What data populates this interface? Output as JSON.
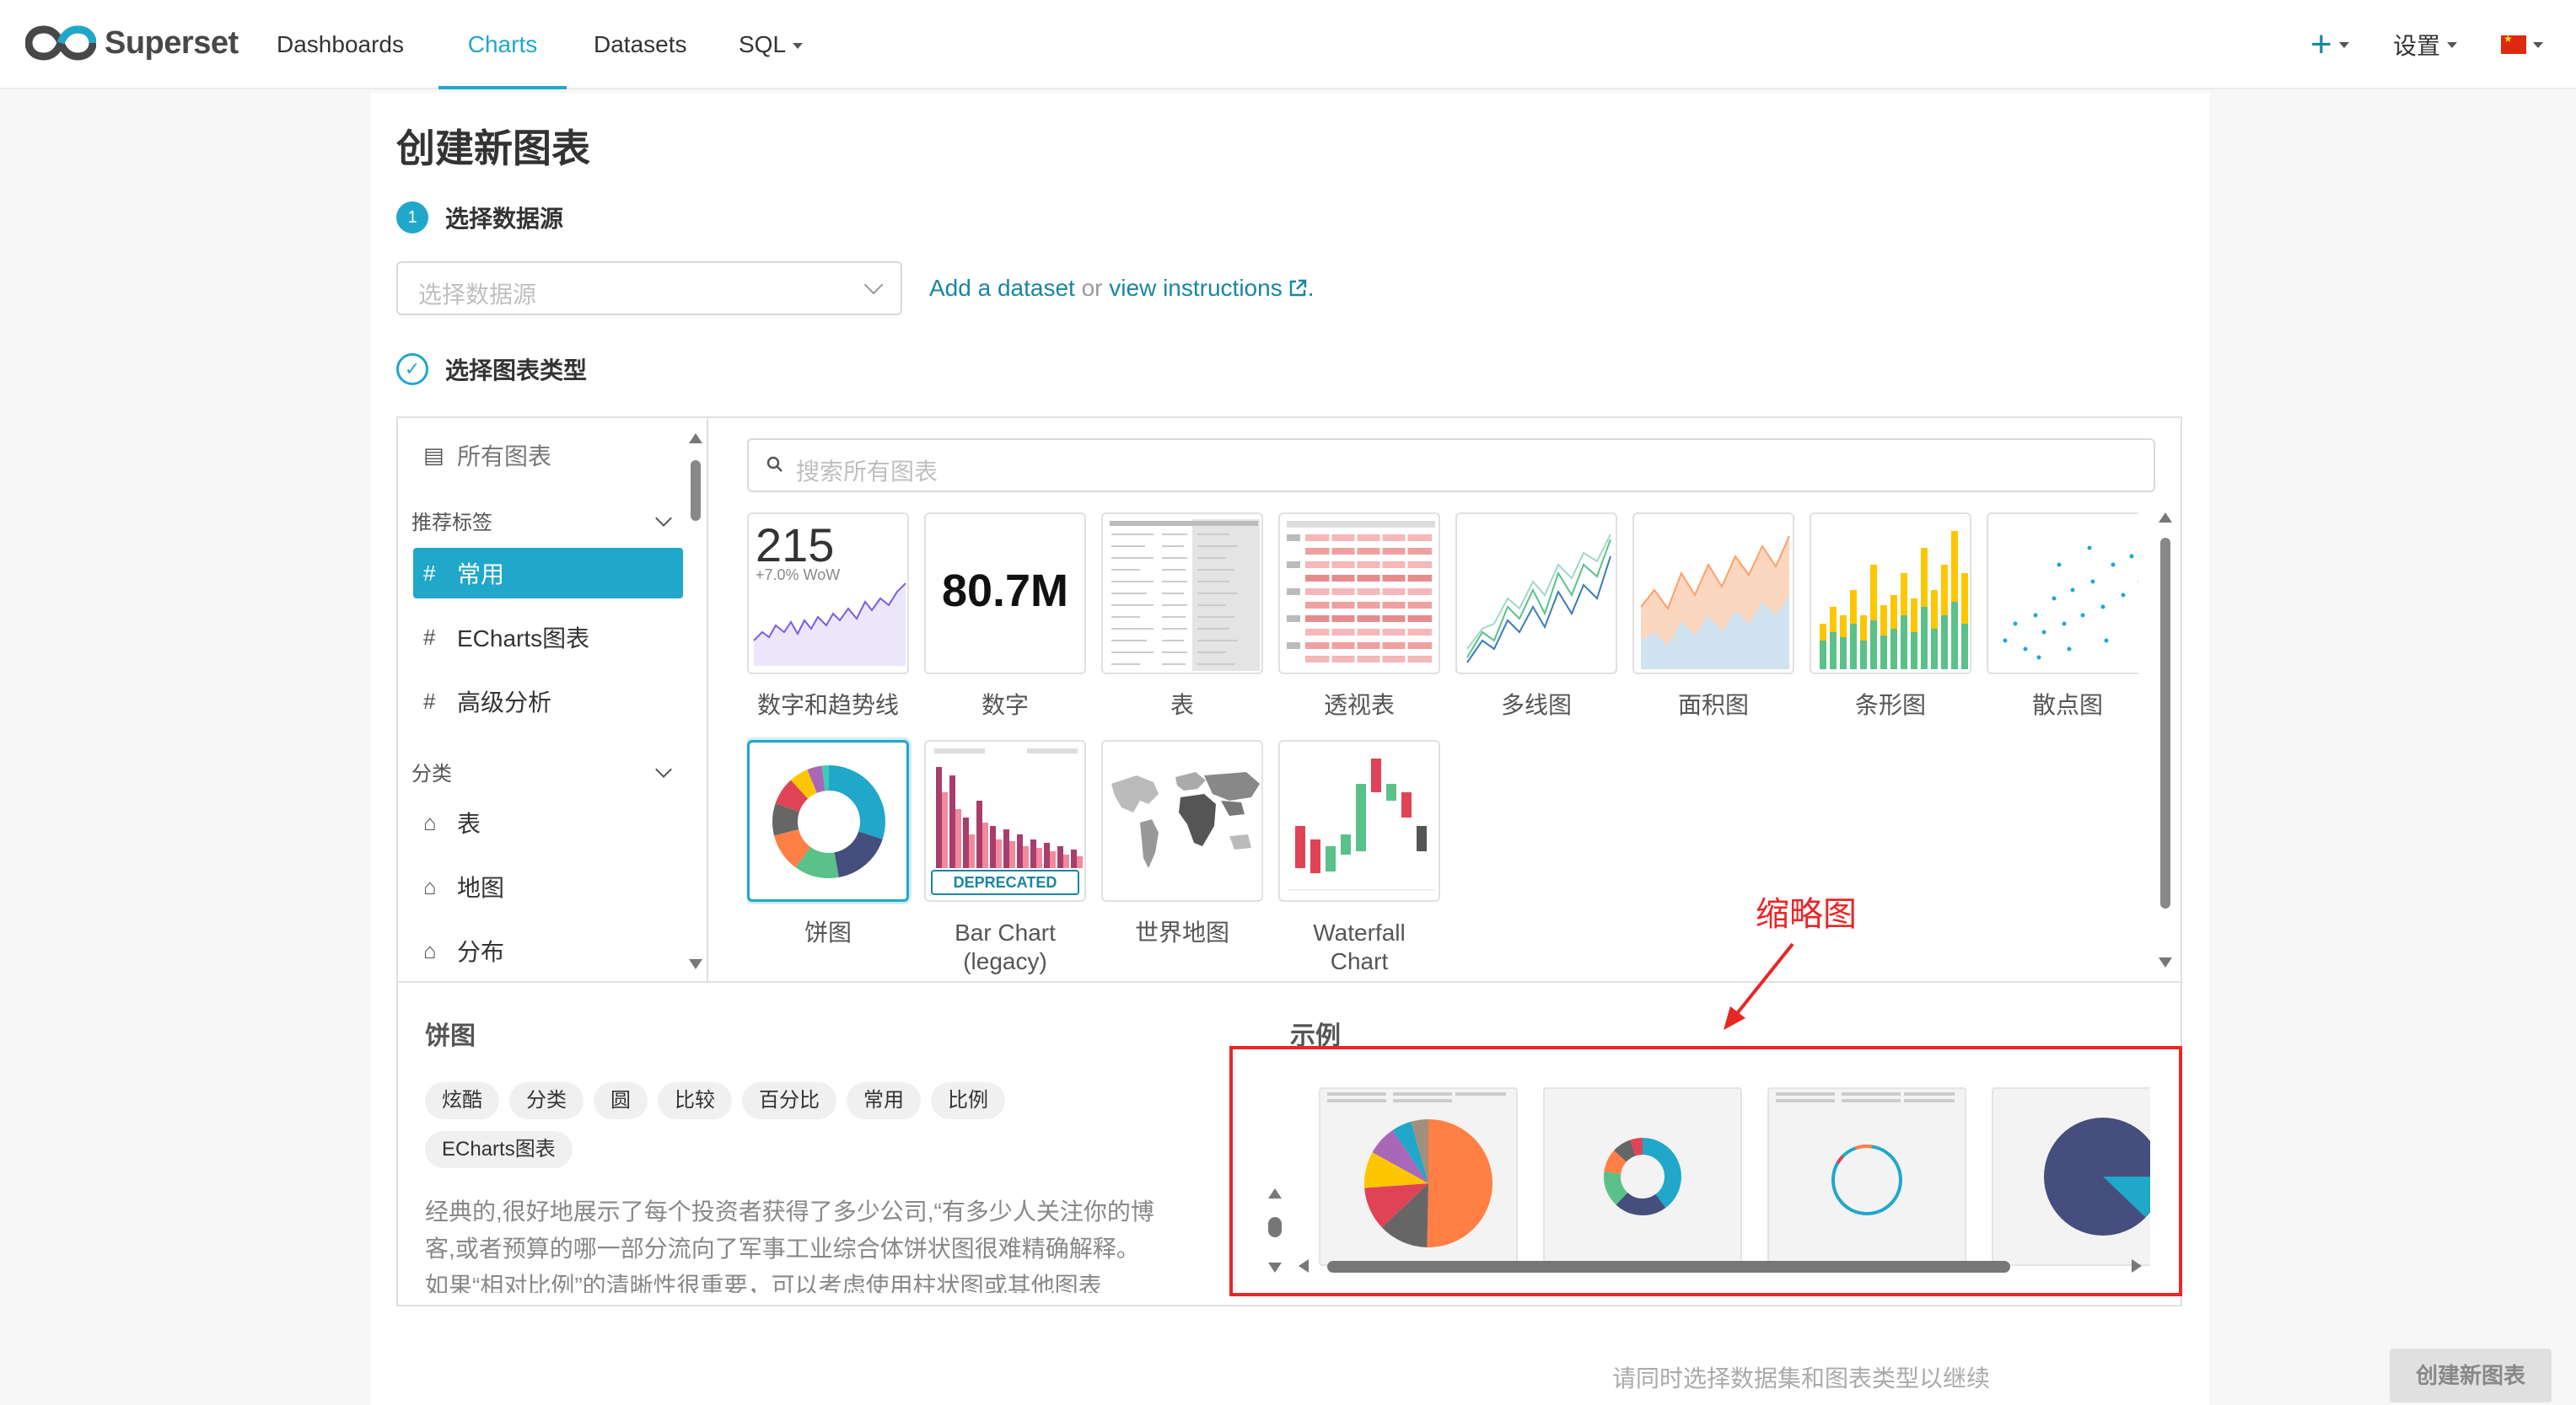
{
  "navbar": {
    "brand": "Superset",
    "items": [
      "Dashboards",
      "Charts",
      "Datasets",
      "SQL"
    ],
    "active": "Charts",
    "settings_label": "设置",
    "plus_label": "+"
  },
  "page": {
    "title": "创建新图表",
    "step1": {
      "number": "1",
      "label": "选择数据源"
    },
    "dataset_placeholder": "选择数据源",
    "add_dataset_link": "Add a dataset",
    "or_text": "or",
    "view_instructions_link": "view instructions",
    "link_suffix": ".",
    "step2": {
      "label": "选择图表类型"
    },
    "footer_hint": "请同时选择数据集和图表类型以继续",
    "create_button": "创建新图表"
  },
  "sidebar": {
    "all_charts": "所有图表",
    "recommended_section": "推荐标签",
    "recommended": [
      "常用",
      "ECharts图表",
      "高级分析"
    ],
    "active": "常用",
    "category_section": "分类",
    "categories": [
      "表",
      "地图",
      "分布"
    ]
  },
  "search": {
    "placeholder": "搜索所有图表"
  },
  "charts": [
    {
      "name": "数字和趋势线",
      "big_number": "215",
      "sub": "+7.0% WoW"
    },
    {
      "name": "数字",
      "big_number": "80.7M"
    },
    {
      "name": "表"
    },
    {
      "name": "透视表"
    },
    {
      "name": "多线图"
    },
    {
      "name": "面积图"
    },
    {
      "name": "条形图"
    },
    {
      "name": "散点图"
    },
    {
      "name": "饼图",
      "selected": true
    },
    {
      "name": "Bar Chart",
      "name2": "(legacy)",
      "badge": "DEPRECATED"
    },
    {
      "name": "世界地图"
    },
    {
      "name": "Waterfall",
      "name2": "Chart"
    }
  ],
  "detail": {
    "title": "饼图",
    "examples_title": "示例",
    "tags": [
      "炫酷",
      "分类",
      "圆",
      "比较",
      "百分比",
      "常用",
      "比例",
      "ECharts图表"
    ],
    "description": "经典的,很好地展示了每个投资者获得了多少公司,“有多少人关注你的博客,或者预算的哪一部分流向了军事工业综合体饼状图很难精确解释。如果“相对比例”的清晰性很重要，可以考虑使用柱状图或其他图表"
  },
  "annotation": {
    "label": "缩略图"
  },
  "colors": {
    "primary": "#20a7c9",
    "link": "#1a85a0",
    "annotation": "#e82626",
    "pie": [
      "#20a7c9",
      "#454e7c",
      "#5ac189",
      "#ff7f44",
      "#666666",
      "#e04355",
      "#fcc700",
      "#a868b7",
      "#3cccb4",
      "#a38f79"
    ]
  }
}
